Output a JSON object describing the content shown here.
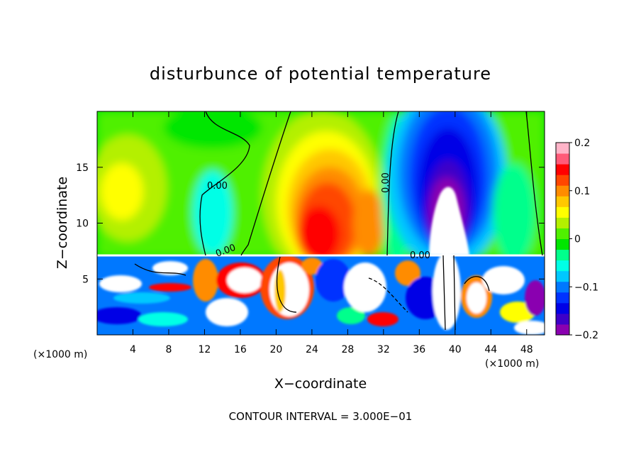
{
  "chart_data": {
    "type": "heatmap",
    "title": "disturbunce of potential temperature",
    "xlabel": "X−coordinate",
    "ylabel": "Z−coordinate",
    "x_unit_left": "(×1000 m)",
    "x_unit_right": "(×1000 m)",
    "xlim": [
      0,
      50
    ],
    "ylim": [
      0,
      20
    ],
    "x_ticks": [
      4,
      8,
      12,
      16,
      20,
      24,
      28,
      32,
      36,
      40,
      44,
      48
    ],
    "y_ticks": [
      5,
      10,
      15
    ],
    "colorbar": {
      "range": [
        -0.2,
        0.2
      ],
      "ticks": [
        0.2,
        0.1,
        0,
        -0.1,
        -0.2
      ],
      "tick_labels": [
        "0.2",
        "0.1",
        "0",
        "−0.1",
        "−0.2"
      ],
      "colors": [
        "#8a00b0",
        "#3d00c8",
        "#0000e6",
        "#0032ff",
        "#0078ff",
        "#00c8ff",
        "#00ffe6",
        "#00ff8c",
        "#00e600",
        "#50f000",
        "#b4f000",
        "#ffff00",
        "#ffc800",
        "#ff8c00",
        "#ff4600",
        "#ff0000",
        "#ff5a78",
        "#ffb4c8"
      ]
    },
    "contour_labels": [
      "0.00",
      "0.00",
      "0.00",
      "0.00"
    ],
    "footer": "CONTOUR INTERVAL = 3.000E−01"
  }
}
